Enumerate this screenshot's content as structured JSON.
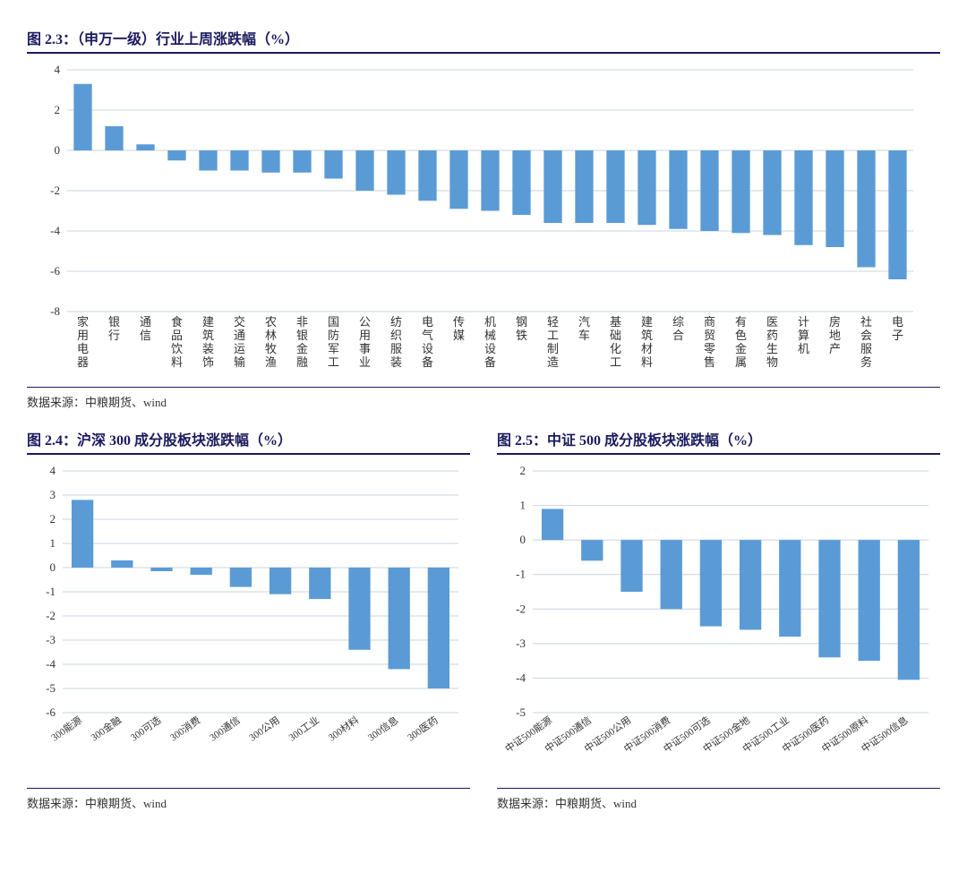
{
  "chart1": {
    "title": "图 2.3：（申万一级）行业上周涨跌幅（%）",
    "type": "bar",
    "categories": [
      "家用电器",
      "银行",
      "通信",
      "食品饮料",
      "建筑装饰",
      "交通运输",
      "农林牧渔",
      "非银金融",
      "国防军工",
      "公用事业",
      "纺织服装",
      "电气设备",
      "传媒",
      "机械设备",
      "钢铁",
      "轻工制造",
      "汽车",
      "基础化工",
      "建筑材料",
      "综合",
      "商贸零售",
      "有色金属",
      "医药生物",
      "计算机",
      "房地产",
      "社会服务",
      "电子"
    ],
    "values": [
      3.3,
      1.2,
      0.3,
      -0.5,
      -1.0,
      -1.0,
      -1.1,
      -1.1,
      -1.4,
      -2.0,
      -2.2,
      -2.5,
      -2.9,
      -3.0,
      -3.2,
      -3.6,
      -3.6,
      -3.6,
      -3.7,
      -3.9,
      -4.0,
      -4.1,
      -4.2,
      -4.7,
      -4.8,
      -5.8,
      -6.4
    ],
    "bar_color": "#5b9bd5",
    "grid_color": "#c9d4de",
    "ylim": [
      -8,
      4
    ],
    "ytick_step": 2,
    "label_fontsize": 12,
    "bar_width": 0.58,
    "source": "数据来源：中粮期货、wind"
  },
  "chart2": {
    "title": "图 2.4：沪深 300 成分股板块涨跌幅（%）",
    "type": "bar",
    "categories": [
      "300能源",
      "300金融",
      "300可选",
      "300消费",
      "300通信",
      "300公用",
      "300工业",
      "300材料",
      "300信息",
      "300医药"
    ],
    "values": [
      2.8,
      0.3,
      -0.15,
      -0.3,
      -0.8,
      -1.1,
      -1.3,
      -3.4,
      -4.2,
      -5.0
    ],
    "bar_color": "#5b9bd5",
    "grid_color": "#c9d4de",
    "ylim": [
      -6,
      4
    ],
    "ytick_step": 1,
    "label_fontsize": 11,
    "label_rotation": -35,
    "bar_width": 0.55,
    "source": "数据来源：中粮期货、wind"
  },
  "chart3": {
    "title": "图 2.5：中证 500 成分股板块涨跌幅（%）",
    "type": "bar",
    "categories": [
      "中证500能源",
      "中证500通信",
      "中证500公用",
      "中证500消费",
      "中证500可选",
      "中证500金地",
      "中证500工业",
      "中证500医药",
      "中证500原料",
      "中证500信息"
    ],
    "values": [
      0.9,
      -0.6,
      -1.5,
      -2.0,
      -2.5,
      -2.6,
      -2.8,
      -3.4,
      -3.5,
      -4.05
    ],
    "bar_color": "#5b9bd5",
    "grid_color": "#c9d4de",
    "ylim": [
      -5,
      2
    ],
    "ytick_step": 1,
    "label_fontsize": 11,
    "label_rotation": -35,
    "bar_width": 0.55,
    "source": "数据来源：中粮期货、wind"
  }
}
